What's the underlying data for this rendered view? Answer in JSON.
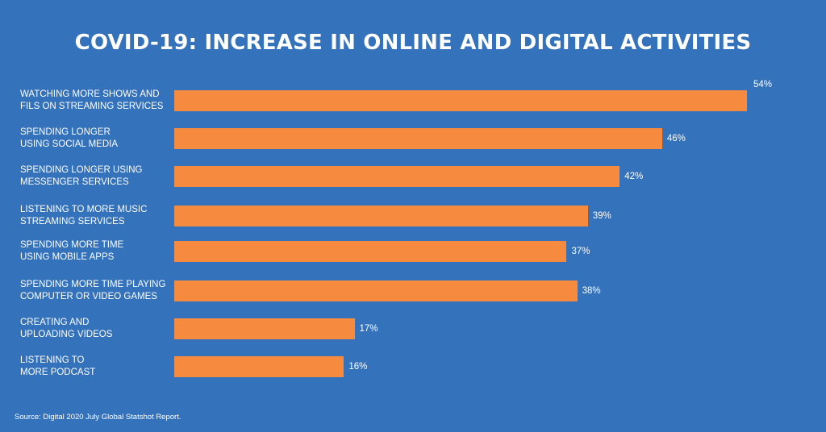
{
  "chart_data": {
    "type": "bar",
    "orientation": "horizontal",
    "title": "COVID-19: INCREASE IN ONLINE AND DIGITAL ACTIVITIES",
    "categories": [
      "WATCHING MORE SHOWS AND\nFILS ON STREAMING SERVICES",
      "SPENDING LONGER\nUSING SOCIAL MEDIA",
      "SPENDING LONGER USING\nMESSENGER SERVICES",
      "LISTENING TO MORE MUSIC\nSTREAMING SERVICES",
      "SPENDING MORE TIME\nUSING MOBILE APPS",
      "SPENDING MORE TIME PLAYING\nCOMPUTER OR VIDEO GAMES",
      "CREATING AND\nUPLOADING VIDEOS",
      "LISTENING TO\nMORE PODCAST"
    ],
    "values": [
      54,
      46,
      42,
      39,
      37,
      38,
      17,
      16
    ],
    "value_labels": [
      "54%",
      "46%",
      "42%",
      "39%",
      "37%",
      "38%",
      "17%",
      "16%"
    ],
    "xlim": [
      0,
      54
    ],
    "grid": false,
    "legend": "none",
    "bar_color": "#f68a3f",
    "background_color": "#3472bb"
  },
  "source": "Source: Digital 2020 July Global Statshot Report."
}
